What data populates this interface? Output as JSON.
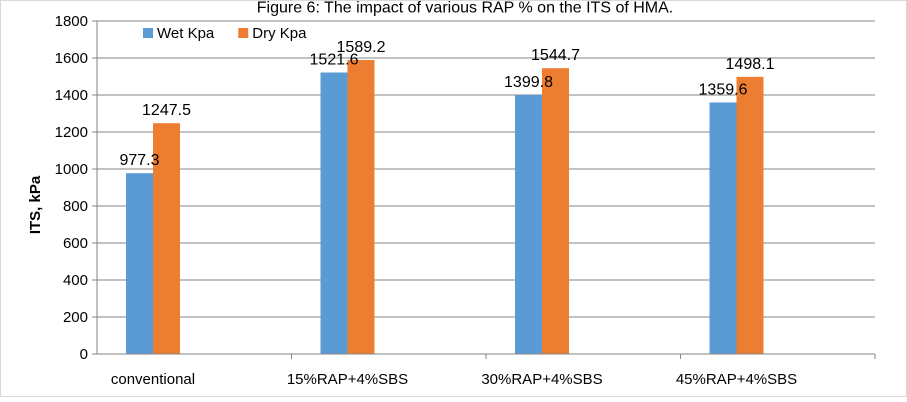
{
  "chart_data": {
    "type": "bar",
    "title": "Figure 6: The impact of various RAP % on the ITS of HMA.",
    "xlabel": "",
    "ylabel": "ITS, kPa",
    "ylim": [
      0,
      1800
    ],
    "yticks": [
      0,
      200,
      400,
      600,
      800,
      1000,
      1200,
      1400,
      1600,
      1800
    ],
    "grid": true,
    "legend_position": "top-left",
    "categories": [
      "conventional",
      "15%RAP+4%SBS",
      "30%RAP+4%SBS",
      "45%RAP+4%SBS"
    ],
    "series": [
      {
        "name": "Wet Kpa",
        "color": "#5b9bd5",
        "values": [
          977.3,
          1521.6,
          1399.8,
          1359.6
        ],
        "labels": [
          "977.3",
          "1521.6",
          "1399.8",
          "1359.6"
        ]
      },
      {
        "name": "Dry Kpa",
        "color": "#ed7d31",
        "values": [
          1247.5,
          1589.2,
          1544.7,
          1498.1
        ],
        "labels": [
          "1247.5",
          "1589.2",
          "1544.7",
          "1498.1"
        ]
      }
    ]
  }
}
